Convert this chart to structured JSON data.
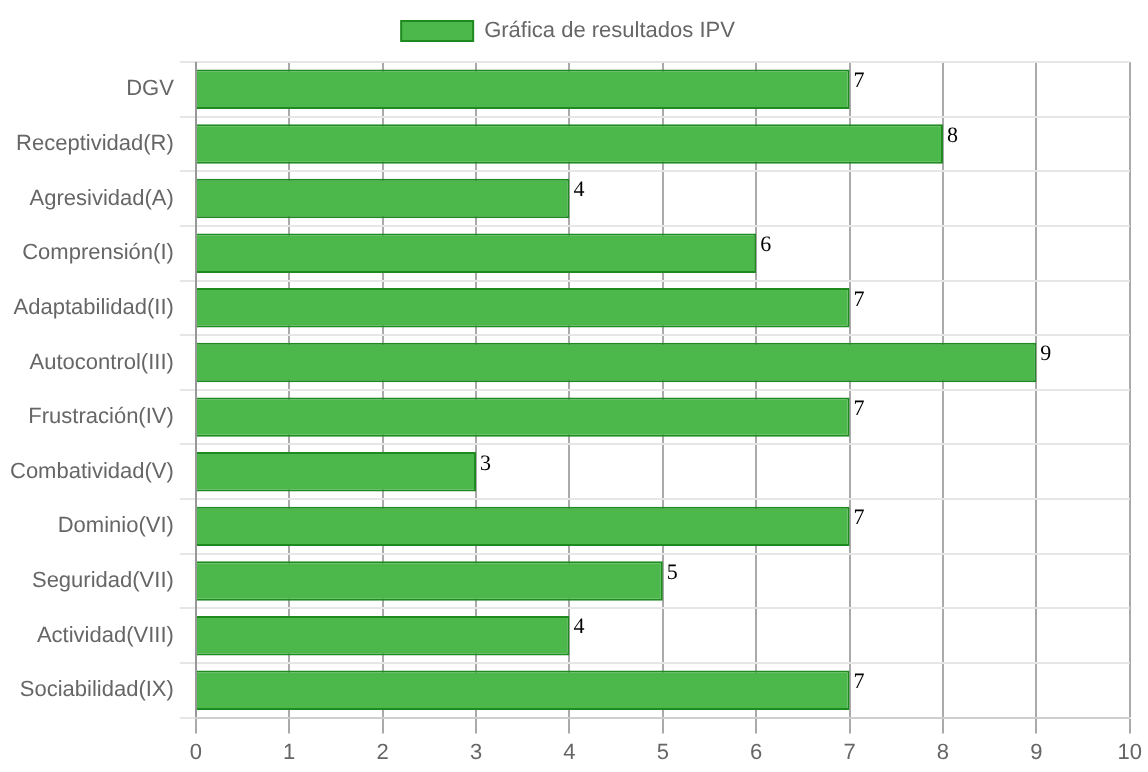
{
  "chart_data": {
    "type": "bar",
    "orientation": "horizontal",
    "categories": [
      "DGV",
      "Receptividad(R)",
      "Agresividad(A)",
      "Comprensión(I)",
      "Adaptabilidad(II)",
      "Autocontrol(III)",
      "Frustración(IV)",
      "Combatividad(V)",
      "Dominio(VI)",
      "Seguridad(VII)",
      "Actividad(VIII)",
      "Sociabilidad(IX)"
    ],
    "series": [
      {
        "name": "Gráfica de resultados IPV",
        "color": "#4cb84c",
        "values": [
          7,
          8,
          4,
          6,
          7,
          9,
          7,
          3,
          7,
          5,
          4,
          7
        ]
      }
    ],
    "xlim": [
      0,
      10
    ],
    "xticks": [
      0,
      1,
      2,
      3,
      4,
      5,
      6,
      7,
      8,
      9,
      10
    ],
    "grid": true,
    "legend": "top",
    "data_labels": true
  }
}
